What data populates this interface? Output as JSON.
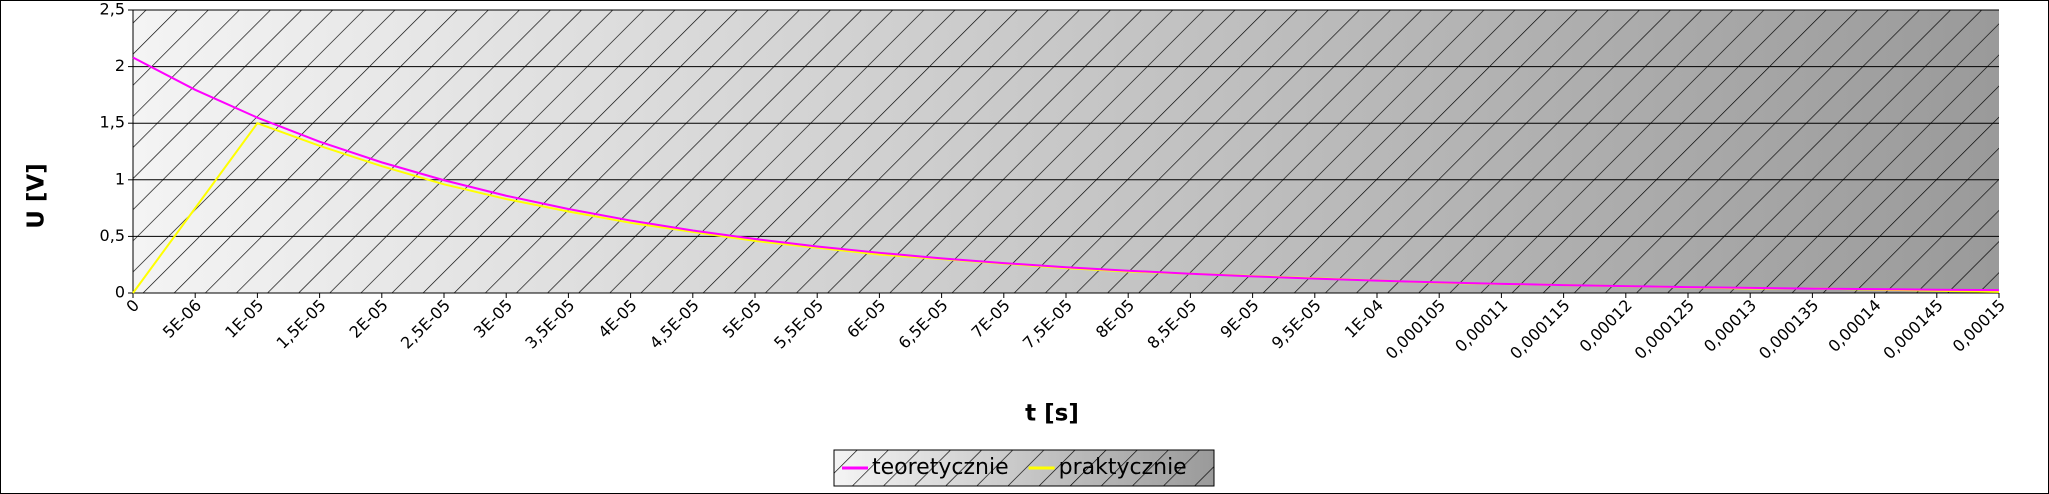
{
  "chart_data": {
    "type": "line",
    "x_label": "t [s]",
    "y_label": "U [V]",
    "categories": [
      "0",
      "5E-06",
      "1E-05",
      "1,5E-05",
      "2E-05",
      "2,5E-05",
      "3E-05",
      "3,5E-05",
      "4E-05",
      "4,5E-05",
      "5E-05",
      "5,5E-05",
      "6E-05",
      "6,5E-05",
      "7E-05",
      "7,5E-05",
      "8E-05",
      "8,5E-05",
      "9E-05",
      "9,5E-05",
      "1E-04",
      "0,000105",
      "0,00011",
      "0,000115",
      "0,00012",
      "0,000125",
      "0,00013",
      "0,000135",
      "0,00014",
      "0,000145",
      "0,00015"
    ],
    "series": [
      {
        "name": "teoretycznie",
        "color": "#ff00ff",
        "values": [
          2.08,
          1.795,
          1.549,
          1.337,
          1.154,
          0.996,
          0.859,
          0.742,
          0.64,
          0.552,
          0.477,
          0.411,
          0.355,
          0.306,
          0.264,
          0.228,
          0.197,
          0.17,
          0.147,
          0.127,
          0.109,
          0.094,
          0.081,
          0.07,
          0.061,
          0.052,
          0.045,
          0.039,
          0.034,
          0.029,
          0.025
        ]
      },
      {
        "name": "praktycznie",
        "color": "#ffff00",
        "values": [
          0,
          0.75,
          1.5,
          1.3,
          1.12,
          0.96,
          0.83,
          0.72,
          0.62,
          0.54,
          0.46,
          0.4,
          0.34,
          0.3,
          0.26,
          0.22,
          0.19,
          0.17,
          0.15,
          0.13,
          0.11,
          0.09,
          0.08,
          0.07,
          0.06,
          0.05,
          0.04,
          0.04,
          0.03,
          0.02,
          0.01
        ]
      }
    ],
    "ylim": [
      0,
      2.5
    ],
    "yticks": [
      0,
      {
        "value": 0.5,
        "label": "0,5"
      },
      1,
      {
        "value": 1.5,
        "label": "1,5"
      },
      2,
      {
        "value": 2.5,
        "label": "2,5"
      }
    ],
    "grid": true,
    "legend": "bottom"
  }
}
